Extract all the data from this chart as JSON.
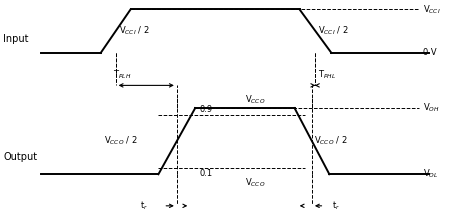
{
  "bg_color": "#ffffff",
  "input_label": "Input",
  "output_label": "Output",
  "vcci_label": "V$_{CCI}$",
  "vcci_half_label1": "V$_{CCI}$ / 2",
  "vcci_half_label2": "V$_{CCI}$ / 2",
  "zero_v_label": "0 V",
  "tplh_label": "T$_{PLH}$",
  "tphl_label": "T$_{PHL}$",
  "voh_label": "V$_{OH}$",
  "vol_label": "V$_{OL}$",
  "vcco_half_label1": "V$_{CCO}$ / 2",
  "vcco_half_label2": "V$_{CCO}$ / 2",
  "vcco_top_label": "V$_{CCO}$",
  "vcco_bot_label": "V$_{CCO}$",
  "vcco_top2_label": "V$_{CCO}$",
  "vcco_bot2_label": "V$_{CCO}$",
  "tr_label1": "t$_r$",
  "tr_label2": "t$_r$",
  "label_09": "0.9",
  "label_01": "0.1"
}
